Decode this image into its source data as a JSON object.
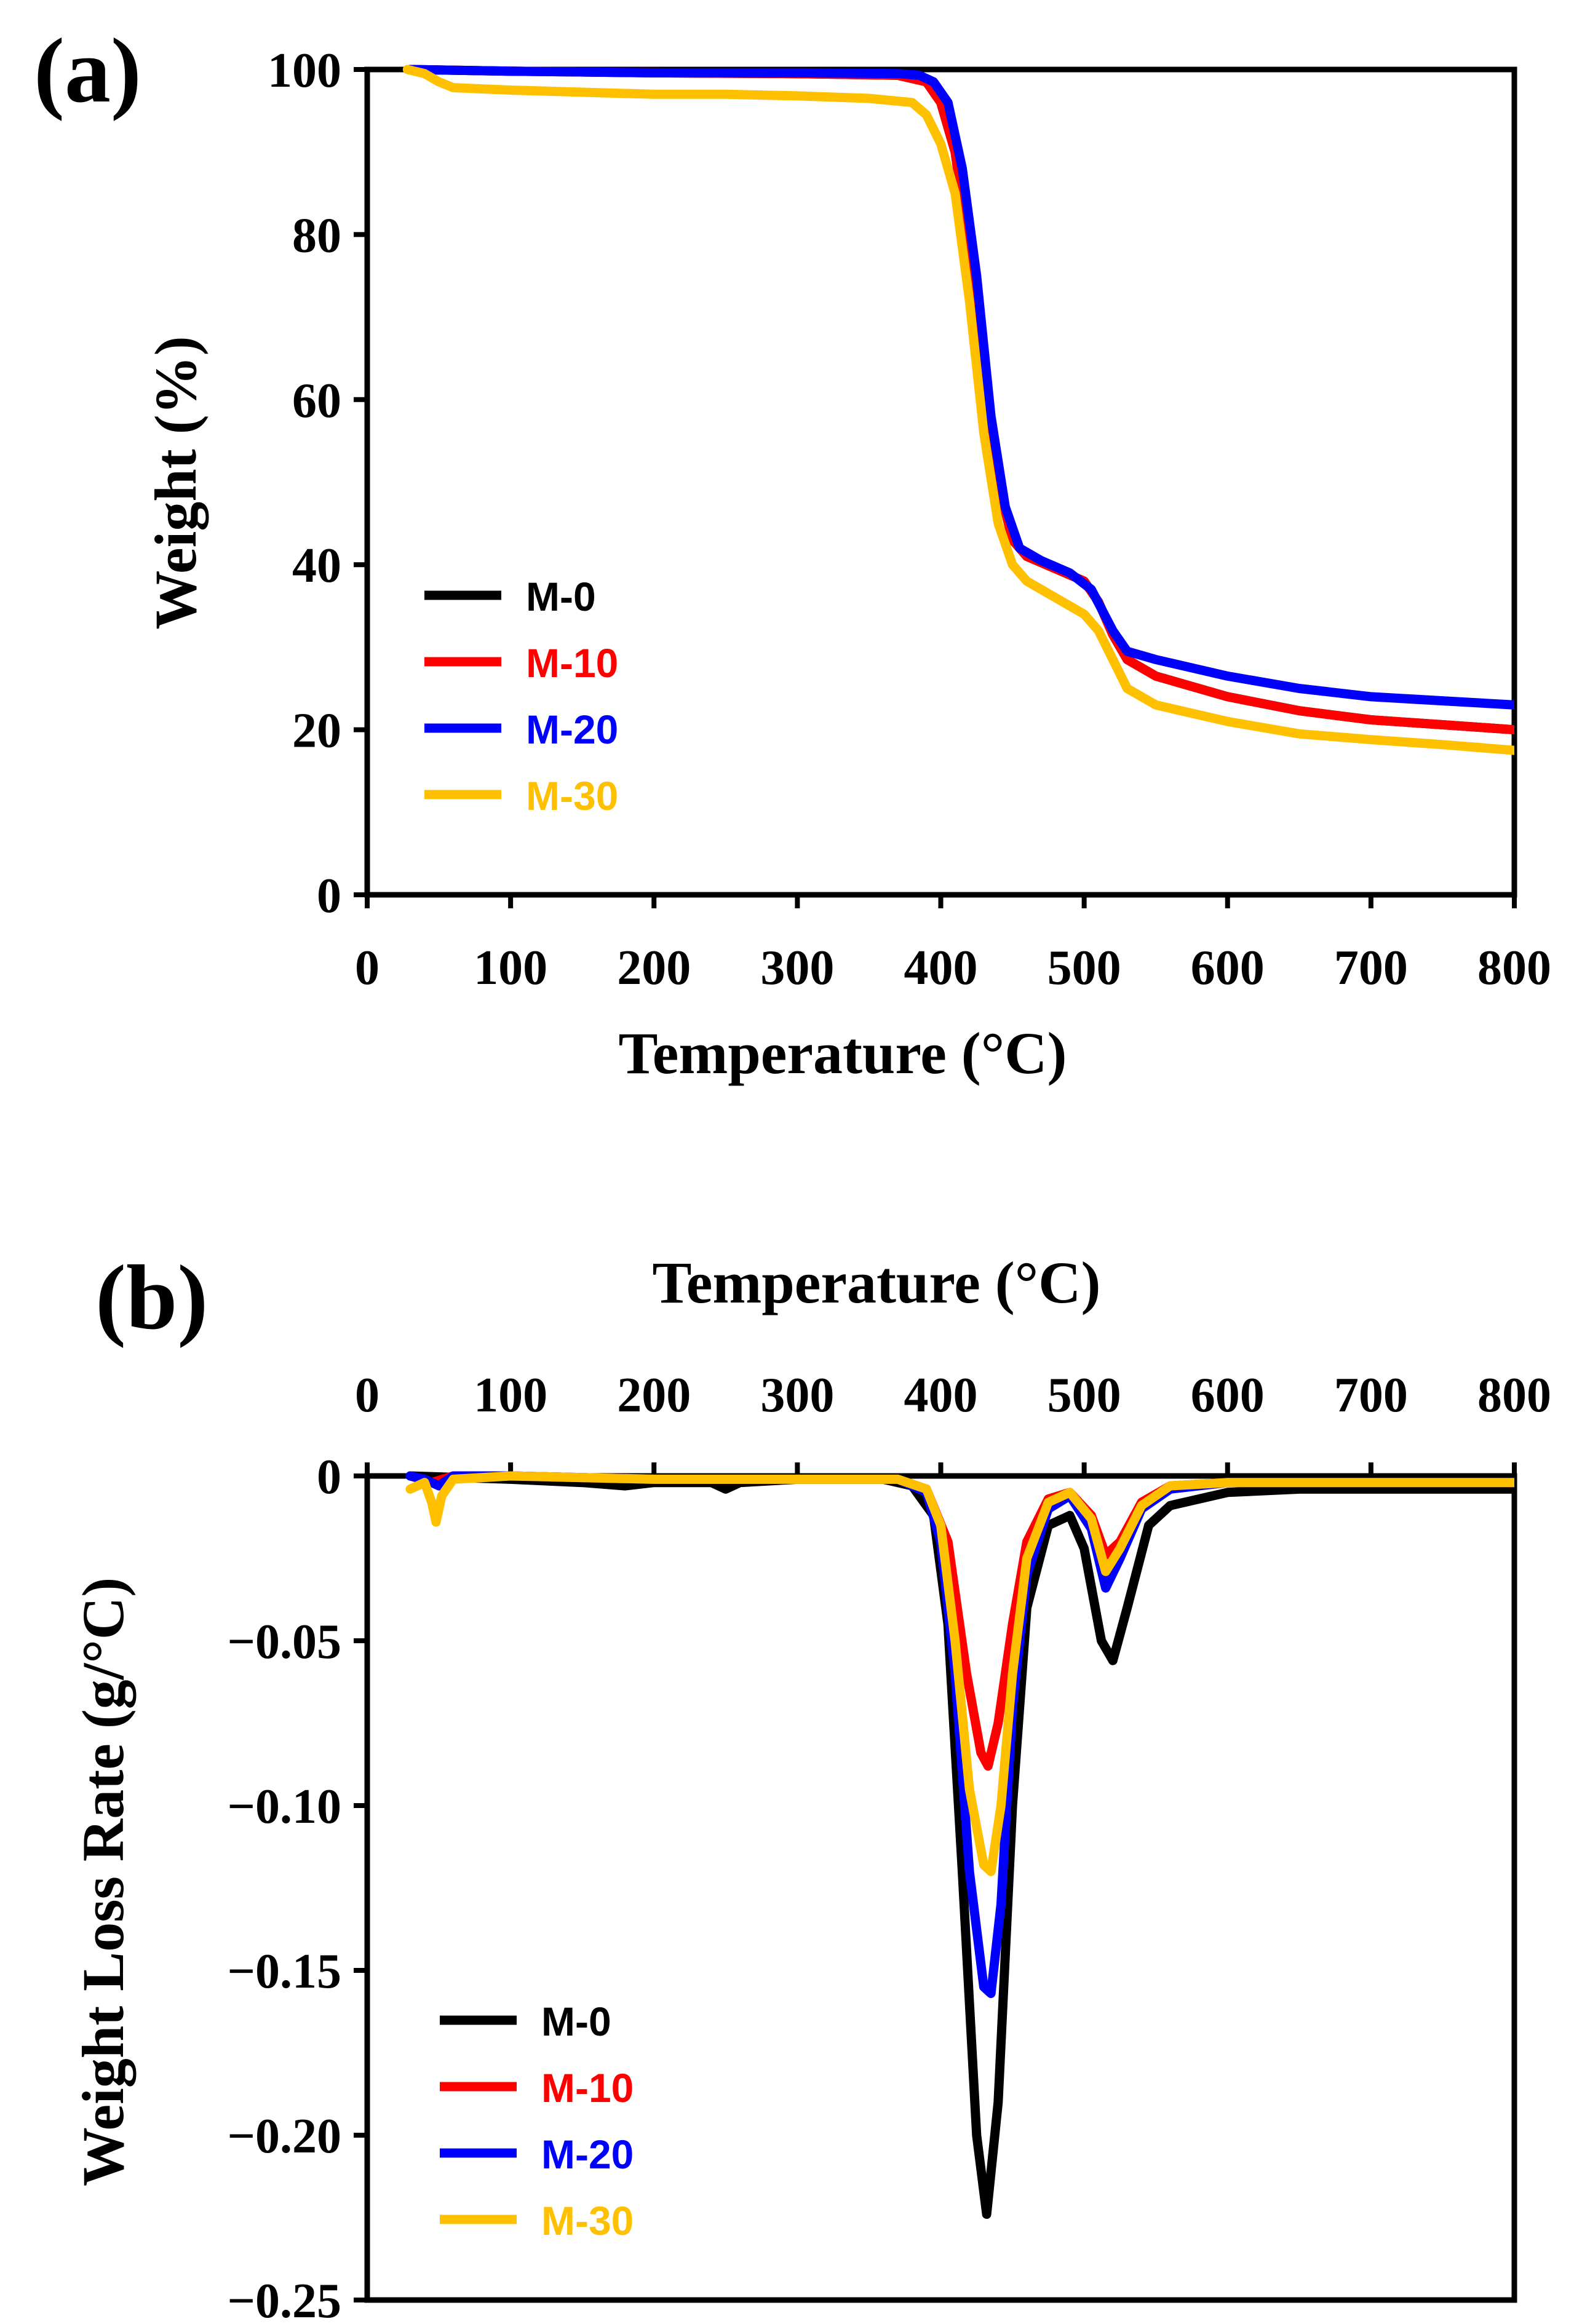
{
  "figure": {
    "panel_a": "(a)",
    "panel_b": "(b)"
  },
  "colors": {
    "M-0": "#000000",
    "M-10": "#ff0000",
    "M-20": "#0000ff",
    "M-30": "#ffc000"
  },
  "chart_data": [
    {
      "type": "line",
      "panel": "(a)",
      "xlabel": "Temperature (°C)",
      "ylabel": "Weight (%)",
      "xlim": [
        0,
        800
      ],
      "ylim": [
        0,
        100
      ],
      "xticks": [
        "0",
        "100",
        "200",
        "300",
        "400",
        "500",
        "600",
        "700",
        "800"
      ],
      "yticks": [
        "0",
        "20",
        "40",
        "60",
        "80",
        "100"
      ],
      "legend_position": "bottom-left",
      "series": [
        {
          "name": "M-0",
          "color": "#000000",
          "points": [
            [
              30,
              100
            ],
            [
              100,
              99.8
            ],
            [
              200,
              99.6
            ],
            [
              300,
              99.5
            ],
            [
              370,
              99.3
            ],
            [
              390,
              98.5
            ],
            [
              400,
              96
            ],
            [
              410,
              90
            ],
            [
              420,
              78
            ],
            [
              430,
              62
            ],
            [
              440,
              50
            ],
            [
              450,
              43
            ],
            [
              460,
              41
            ],
            [
              480,
              39.5
            ],
            [
              500,
              38
            ],
            [
              510,
              35.5
            ],
            [
              520,
              31.5
            ],
            [
              530,
              28.5
            ],
            [
              550,
              26.5
            ],
            [
              600,
              24
            ],
            [
              650,
              22.3
            ],
            [
              700,
              21.2
            ],
            [
              750,
              20.6
            ],
            [
              800,
              20
            ]
          ]
        },
        {
          "name": "M-10",
          "color": "#ff0000",
          "points": [
            [
              30,
              100
            ],
            [
              100,
              99.8
            ],
            [
              200,
              99.6
            ],
            [
              300,
              99.5
            ],
            [
              370,
              99.3
            ],
            [
              390,
              98.5
            ],
            [
              400,
              96
            ],
            [
              410,
              90
            ],
            [
              420,
              78
            ],
            [
              430,
              62
            ],
            [
              440,
              50
            ],
            [
              450,
              43
            ],
            [
              460,
              41
            ],
            [
              480,
              39.5
            ],
            [
              500,
              38
            ],
            [
              510,
              35.5
            ],
            [
              520,
              31.5
            ],
            [
              530,
              28.5
            ],
            [
              550,
              26.5
            ],
            [
              600,
              24
            ],
            [
              650,
              22.3
            ],
            [
              700,
              21.2
            ],
            [
              750,
              20.6
            ],
            [
              800,
              20
            ]
          ]
        },
        {
          "name": "M-20",
          "color": "#0000ff",
          "points": [
            [
              30,
              100
            ],
            [
              100,
              99.8
            ],
            [
              200,
              99.6
            ],
            [
              300,
              99.6
            ],
            [
              370,
              99.5
            ],
            [
              385,
              99.3
            ],
            [
              395,
              98.5
            ],
            [
              405,
              96
            ],
            [
              415,
              88
            ],
            [
              425,
              75
            ],
            [
              435,
              58
            ],
            [
              445,
              47
            ],
            [
              455,
              42
            ],
            [
              470,
              40.5
            ],
            [
              490,
              39
            ],
            [
              505,
              37
            ],
            [
              520,
              32
            ],
            [
              530,
              29.5
            ],
            [
              550,
              28.5
            ],
            [
              600,
              26.5
            ],
            [
              650,
              25
            ],
            [
              700,
              24
            ],
            [
              750,
              23.5
            ],
            [
              800,
              23
            ]
          ]
        },
        {
          "name": "M-30",
          "color": "#ffc000",
          "points": [
            [
              28,
              100
            ],
            [
              40,
              99.5
            ],
            [
              50,
              98.5
            ],
            [
              60,
              97.8
            ],
            [
              100,
              97.5
            ],
            [
              200,
              97
            ],
            [
              250,
              97
            ],
            [
              300,
              96.8
            ],
            [
              350,
              96.5
            ],
            [
              380,
              96
            ],
            [
              390,
              94.5
            ],
            [
              400,
              91
            ],
            [
              410,
              85
            ],
            [
              420,
              72
            ],
            [
              430,
              56
            ],
            [
              440,
              45
            ],
            [
              450,
              40
            ],
            [
              460,
              38
            ],
            [
              480,
              36
            ],
            [
              500,
              34
            ],
            [
              510,
              32
            ],
            [
              520,
              28.5
            ],
            [
              530,
              25
            ],
            [
              550,
              23
            ],
            [
              600,
              21
            ],
            [
              650,
              19.5
            ],
            [
              700,
              18.8
            ],
            [
              750,
              18.2
            ],
            [
              800,
              17.5
            ]
          ]
        }
      ]
    },
    {
      "type": "line",
      "panel": "(b)",
      "xlabel": "Temperature (°C)",
      "ylabel": "Weight Loss Rate (g/°C)",
      "xaxis_position": "top",
      "xlim": [
        0,
        800
      ],
      "ylim": [
        -0.25,
        0
      ],
      "xticks": [
        "0",
        "100",
        "200",
        "300",
        "400",
        "500",
        "600",
        "700",
        "800"
      ],
      "yticks": [
        "0",
        "−0.05",
        "−0.10",
        "−0.15",
        "−0.20",
        "−0.25"
      ],
      "legend_position": "bottom-left",
      "series": [
        {
          "name": "M-0",
          "color": "#000000",
          "points": [
            [
              30,
              0
            ],
            [
              100,
              -0.001
            ],
            [
              150,
              -0.002
            ],
            [
              180,
              -0.003
            ],
            [
              200,
              -0.002
            ],
            [
              240,
              -0.002
            ],
            [
              250,
              -0.004
            ],
            [
              260,
              -0.002
            ],
            [
              300,
              -0.001
            ],
            [
              360,
              -0.001
            ],
            [
              380,
              -0.003
            ],
            [
              395,
              -0.012
            ],
            [
              405,
              -0.045
            ],
            [
              415,
              -0.12
            ],
            [
              425,
              -0.2
            ],
            [
              432,
              -0.224
            ],
            [
              440,
              -0.19
            ],
            [
              450,
              -0.1
            ],
            [
              460,
              -0.04
            ],
            [
              475,
              -0.015
            ],
            [
              490,
              -0.012
            ],
            [
              500,
              -0.022
            ],
            [
              512,
              -0.05
            ],
            [
              520,
              -0.056
            ],
            [
              530,
              -0.04
            ],
            [
              545,
              -0.015
            ],
            [
              560,
              -0.009
            ],
            [
              600,
              -0.005
            ],
            [
              650,
              -0.004
            ],
            [
              700,
              -0.004
            ],
            [
              800,
              -0.004
            ]
          ]
        },
        {
          "name": "M-10",
          "color": "#ff0000",
          "points": [
            [
              30,
              0
            ],
            [
              45,
              -0.002
            ],
            [
              60,
              0
            ],
            [
              100,
              0
            ],
            [
              200,
              -0.001
            ],
            [
              300,
              -0.001
            ],
            [
              370,
              -0.001
            ],
            [
              390,
              -0.004
            ],
            [
              405,
              -0.02
            ],
            [
              418,
              -0.06
            ],
            [
              428,
              -0.084
            ],
            [
              433,
              -0.088
            ],
            [
              440,
              -0.075
            ],
            [
              450,
              -0.045
            ],
            [
              460,
              -0.02
            ],
            [
              475,
              -0.007
            ],
            [
              490,
              -0.005
            ],
            [
              505,
              -0.012
            ],
            [
              515,
              -0.024
            ],
            [
              525,
              -0.02
            ],
            [
              540,
              -0.008
            ],
            [
              560,
              -0.003
            ],
            [
              600,
              -0.002
            ],
            [
              700,
              -0.002
            ],
            [
              800,
              -0.002
            ]
          ]
        },
        {
          "name": "M-20",
          "color": "#0000ff",
          "points": [
            [
              30,
              0
            ],
            [
              40,
              -0.001
            ],
            [
              50,
              -0.003
            ],
            [
              60,
              0
            ],
            [
              100,
              0
            ],
            [
              200,
              -0.001
            ],
            [
              300,
              -0.001
            ],
            [
              370,
              -0.001
            ],
            [
              390,
              -0.005
            ],
            [
              400,
              -0.02
            ],
            [
              410,
              -0.06
            ],
            [
              420,
              -0.12
            ],
            [
              430,
              -0.155
            ],
            [
              435,
              -0.157
            ],
            [
              442,
              -0.13
            ],
            [
              450,
              -0.07
            ],
            [
              460,
              -0.03
            ],
            [
              475,
              -0.01
            ],
            [
              490,
              -0.006
            ],
            [
              505,
              -0.016
            ],
            [
              515,
              -0.034
            ],
            [
              525,
              -0.025
            ],
            [
              540,
              -0.01
            ],
            [
              560,
              -0.004
            ],
            [
              600,
              -0.002
            ],
            [
              700,
              -0.002
            ],
            [
              800,
              -0.002
            ]
          ]
        },
        {
          "name": "M-30",
          "color": "#ffc000",
          "points": [
            [
              30,
              -0.004
            ],
            [
              40,
              -0.002
            ],
            [
              45,
              -0.008
            ],
            [
              48,
              -0.014
            ],
            [
              52,
              -0.006
            ],
            [
              60,
              -0.001
            ],
            [
              100,
              0
            ],
            [
              200,
              -0.001
            ],
            [
              300,
              -0.001
            ],
            [
              370,
              -0.001
            ],
            [
              390,
              -0.004
            ],
            [
              400,
              -0.015
            ],
            [
              410,
              -0.05
            ],
            [
              420,
              -0.095
            ],
            [
              430,
              -0.118
            ],
            [
              435,
              -0.12
            ],
            [
              442,
              -0.1
            ],
            [
              450,
              -0.06
            ],
            [
              460,
              -0.025
            ],
            [
              475,
              -0.008
            ],
            [
              490,
              -0.005
            ],
            [
              505,
              -0.013
            ],
            [
              515,
              -0.029
            ],
            [
              525,
              -0.022
            ],
            [
              540,
              -0.009
            ],
            [
              560,
              -0.003
            ],
            [
              600,
              -0.002
            ],
            [
              700,
              -0.002
            ],
            [
              800,
              -0.002
            ]
          ]
        }
      ]
    }
  ]
}
